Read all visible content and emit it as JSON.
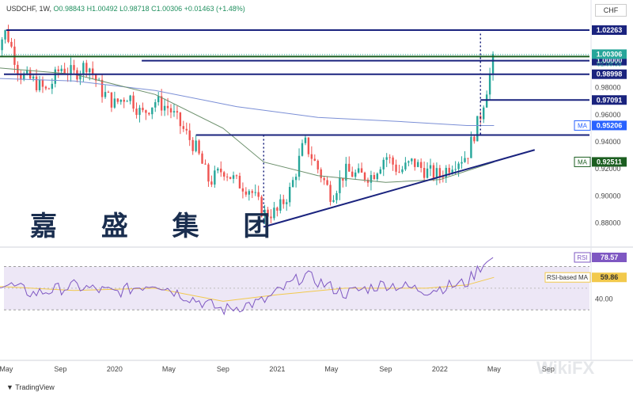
{
  "header": {
    "symbol": "USDCHF, 1W,",
    "ohlc": "O0.98843  H1.00492  L0.98718  C1.00306  +0.01463 (+1.48%)",
    "unit": "CHF"
  },
  "watermark_text": "嘉 盛 集 团",
  "footer_logo": "TradingView",
  "wikifx_text": "WikiFX",
  "chart_data": {
    "type": "candlestick",
    "symbol": "USDCHF",
    "interval": "1W",
    "y_ticks": [
      "0.98000",
      "0.96000",
      "0.94000",
      "0.92000",
      "0.90000",
      "0.88000"
    ],
    "y_tick_values": [
      0.98,
      0.96,
      0.94,
      0.92,
      0.9,
      0.88
    ],
    "ylim": [
      0.865,
      1.032
    ],
    "x_ticks": [
      "May",
      "Sep",
      "2020",
      "May",
      "Sep",
      "2021",
      "May",
      "Sep",
      "2022",
      "May",
      "Sep"
    ],
    "x_tick_dates": [
      "2019-05",
      "2019-09",
      "2020-01",
      "2020-05",
      "2020-09",
      "2021-01",
      "2021-05",
      "2021-09",
      "2022-01",
      "2022-05",
      "2022-09"
    ],
    "price_path": [
      [
        "2019-04",
        1.005
      ],
      [
        "2019-05",
        1.022
      ],
      [
        "2019-06",
        0.99
      ],
      [
        "2019-07",
        0.985
      ],
      [
        "2019-08",
        0.977
      ],
      [
        "2019-09",
        0.995
      ],
      [
        "2019-10",
        0.99
      ],
      [
        "2019-11",
        0.998
      ],
      [
        "2019-12",
        0.978
      ],
      [
        "2020-01",
        0.968
      ],
      [
        "2020-02",
        0.975
      ],
      [
        "2020-03",
        0.96
      ],
      [
        "2020-04",
        0.97
      ],
      [
        "2020-05",
        0.965
      ],
      [
        "2020-06",
        0.95
      ],
      [
        "2020-07",
        0.935
      ],
      [
        "2020-08",
        0.91
      ],
      [
        "2020-09",
        0.92
      ],
      [
        "2020-10",
        0.91
      ],
      [
        "2020-11",
        0.905
      ],
      [
        "2020-12",
        0.887
      ],
      [
        "2021-01",
        0.888
      ],
      [
        "2021-02",
        0.905
      ],
      [
        "2021-03",
        0.94
      ],
      [
        "2021-04",
        0.92
      ],
      [
        "2021-05",
        0.9
      ],
      [
        "2021-06",
        0.918
      ],
      [
        "2021-07",
        0.915
      ],
      [
        "2021-08",
        0.915
      ],
      [
        "2021-09",
        0.93
      ],
      [
        "2021-10",
        0.918
      ],
      [
        "2021-11",
        0.925
      ],
      [
        "2021-12",
        0.918
      ],
      [
        "2022-01",
        0.915
      ],
      [
        "2022-02",
        0.925
      ],
      [
        "2022-03",
        0.93
      ],
      [
        "2022-04",
        0.96
      ],
      [
        "2022-05",
        1.003
      ]
    ],
    "ma_fast": [
      [
        "2019-04",
        0.995
      ],
      [
        "2019-10",
        0.99
      ],
      [
        "2020-04",
        0.975
      ],
      [
        "2020-09",
        0.95
      ],
      [
        "2020-12",
        0.925
      ],
      [
        "2021-04",
        0.915
      ],
      [
        "2021-09",
        0.91
      ],
      [
        "2022-01",
        0.912
      ],
      [
        "2022-05",
        0.925
      ]
    ],
    "ma_slow": [
      [
        "2019-04",
        0.987
      ],
      [
        "2019-10",
        0.985
      ],
      [
        "2020-04",
        0.978
      ],
      [
        "2020-10",
        0.966
      ],
      [
        "2021-04",
        0.958
      ],
      [
        "2021-10",
        0.955
      ],
      [
        "2022-03",
        0.952
      ],
      [
        "2022-05",
        0.952
      ]
    ],
    "horizontal_levels": [
      {
        "value": 1.02263,
        "label": "1.02263",
        "from": "2019-05",
        "color": "#1a237e"
      },
      {
        "value": 1.00306,
        "label": "1.00306",
        "from": "2019-04",
        "color": "#1b5e20"
      },
      {
        "value": 1.0,
        "label": "1.00000",
        "from": "2020-03",
        "color": "#1a237e"
      },
      {
        "value": 0.98998,
        "label": "0.98998",
        "color": "#1a237e"
      },
      {
        "value": 0.97091,
        "label": "0.97091",
        "from": "2022-04",
        "color": "#1a237e"
      },
      {
        "value": 0.945,
        "from": "2020-07",
        "color": "#1a237e"
      }
    ],
    "trendline": {
      "from": [
        "2020-12",
        0.877
      ],
      "to": [
        "2022-08",
        0.934
      ]
    },
    "dotted_verticals": [
      {
        "date": "2020-12",
        "from": 0.945,
        "to": 0.877
      },
      {
        "date": "2022-04",
        "from": 1.02,
        "to": 0.945
      }
    ],
    "price_labels": [
      {
        "name": "",
        "value": "1.00306",
        "sub": "02:08:59",
        "color": "#26a69a"
      },
      {
        "name": "MA",
        "value": "0.95206",
        "color": "#2962ff"
      },
      {
        "name": "MA",
        "value": "0.92511",
        "color": "#1b5e20"
      }
    ],
    "rsi": {
      "y_tick": "40.00",
      "label": "RSI",
      "value": "78.57",
      "ma_label": "RSI-based MA",
      "ma_value": "59.86",
      "ylim": [
        20,
        85
      ],
      "band": [
        30,
        70
      ],
      "rsi_path": [
        [
          "2019-04",
          58
        ],
        [
          "2019-07",
          45
        ],
        [
          "2019-10",
          52
        ],
        [
          "2020-01",
          46
        ],
        [
          "2020-04",
          55
        ],
        [
          "2020-06",
          44
        ],
        [
          "2020-09",
          30
        ],
        [
          "2020-12",
          38
        ],
        [
          "2021-03",
          62
        ],
        [
          "2021-06",
          45
        ],
        [
          "2021-09",
          54
        ],
        [
          "2021-12",
          48
        ],
        [
          "2022-03",
          55
        ],
        [
          "2022-04",
          70
        ],
        [
          "2022-05",
          79
        ]
      ],
      "rsi_ma_path": [
        [
          "2019-04",
          52
        ],
        [
          "2019-10",
          48
        ],
        [
          "2020-04",
          50
        ],
        [
          "2020-09",
          38
        ],
        [
          "2021-01",
          44
        ],
        [
          "2021-06",
          50
        ],
        [
          "2021-12",
          50
        ],
        [
          "2022-03",
          53
        ],
        [
          "2022-05",
          60
        ]
      ]
    }
  }
}
